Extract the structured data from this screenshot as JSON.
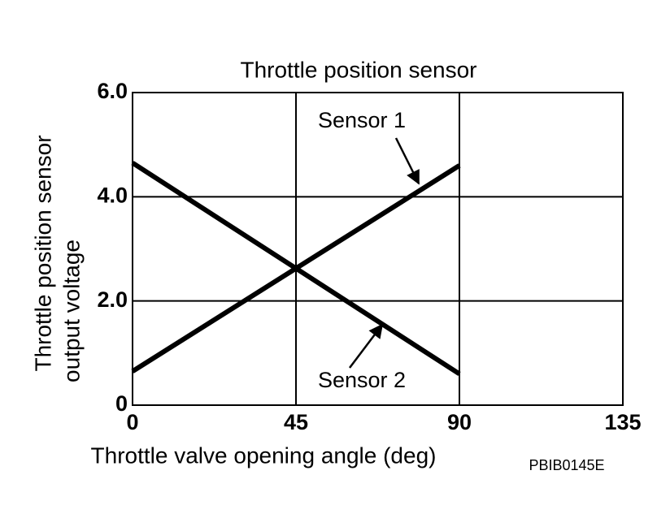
{
  "chart_data": {
    "type": "line",
    "title": "Throttle position sensor",
    "xlabel": "Throttle valve opening angle (deg)",
    "ylabel": [
      "Throttle position sensor",
      "output voltage"
    ],
    "x": [
      0,
      90
    ],
    "series": [
      {
        "name": "Sensor 1",
        "color": "#000000",
        "values": [
          0.65,
          4.6
        ]
      },
      {
        "name": "Sensor 2",
        "color": "#000000",
        "values": [
          4.65,
          0.6
        ]
      }
    ],
    "xlim": [
      0,
      135
    ],
    "xticks": [
      0,
      45,
      90,
      135
    ],
    "ylim": [
      0,
      6
    ],
    "yticks": [
      0,
      {
        "value": 2,
        "label": "2.0"
      },
      {
        "value": 4,
        "label": "4.0"
      },
      {
        "value": 6,
        "label": "6.0"
      }
    ],
    "grid": true,
    "annotations": [
      "PBIB0145E"
    ]
  }
}
